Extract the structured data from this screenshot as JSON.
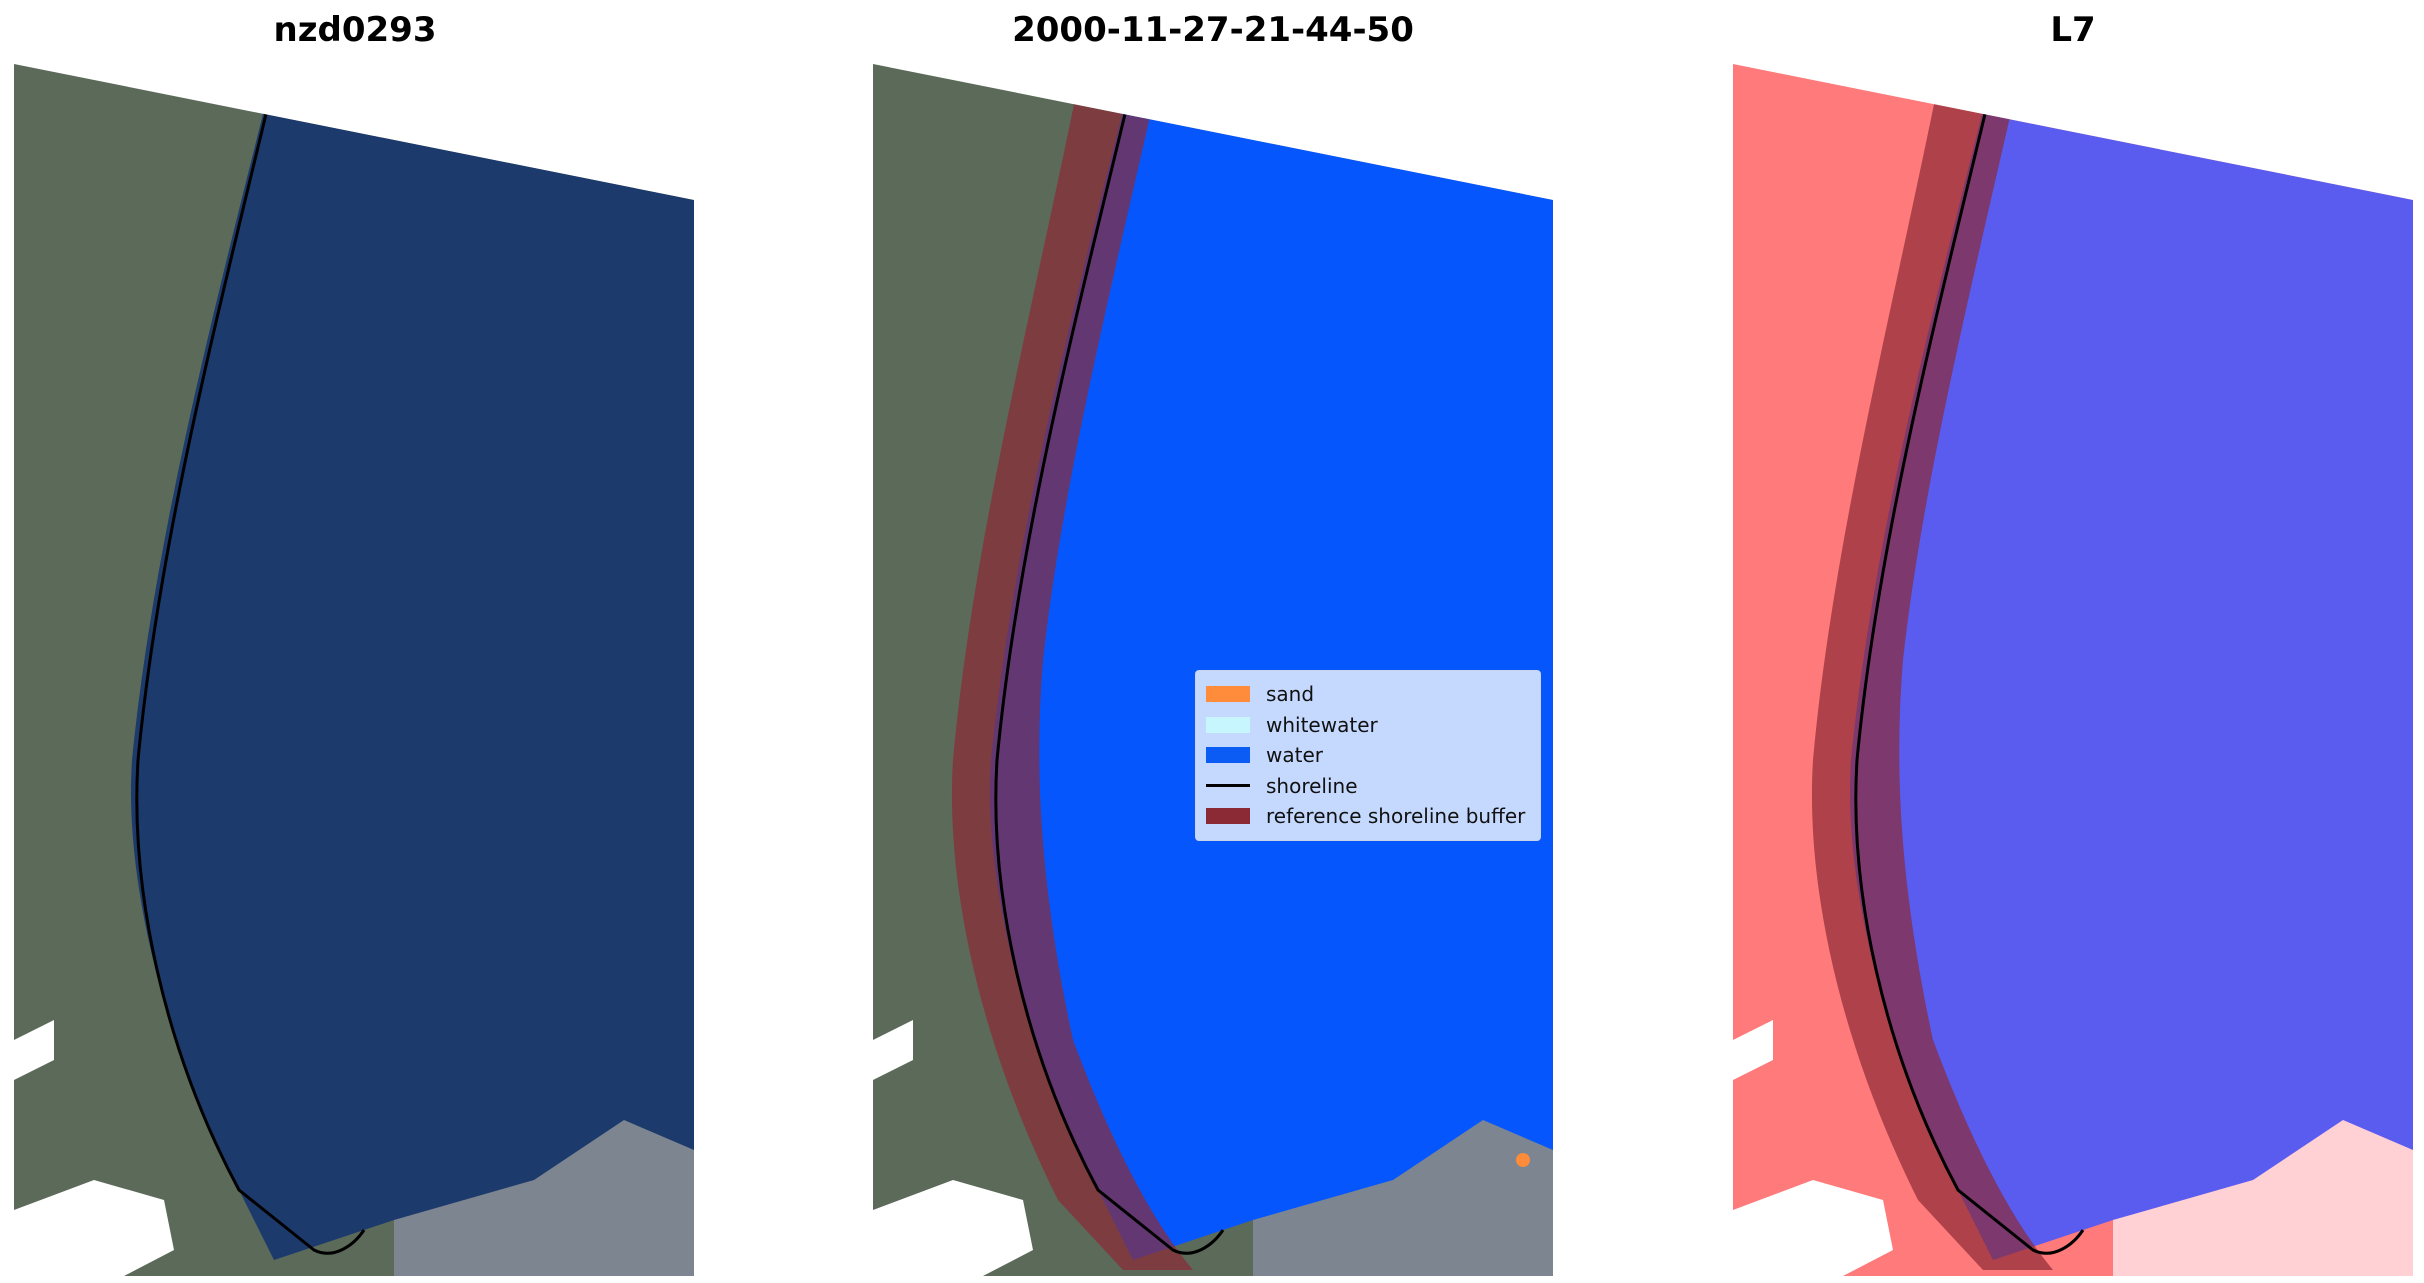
{
  "panels": [
    {
      "title": "nzd0293"
    },
    {
      "title": "2000-11-27-21-44-50"
    },
    {
      "title": "L7"
    }
  ],
  "legend": {
    "items": [
      {
        "label": "sand",
        "color": "#ff8c3a",
        "kind": "patch"
      },
      {
        "label": "whitewater",
        "color": "#c8f6ff",
        "kind": "patch"
      },
      {
        "label": "water",
        "color": "#0a5cf5",
        "kind": "patch"
      },
      {
        "label": "shoreline",
        "color": "#000000",
        "kind": "line"
      },
      {
        "label": "reference shoreline buffer",
        "color": "#8b2a35",
        "kind": "patch"
      }
    ]
  },
  "colors": {
    "ocean_true_color": "#1c3a6b",
    "land_true_color": "#5c6a5a",
    "classified_water": "#0557fd",
    "buffer": "#8b2a35",
    "index_land": "#ff7a7a",
    "index_water": "#5a5cf0",
    "shoreline": "#000000"
  }
}
